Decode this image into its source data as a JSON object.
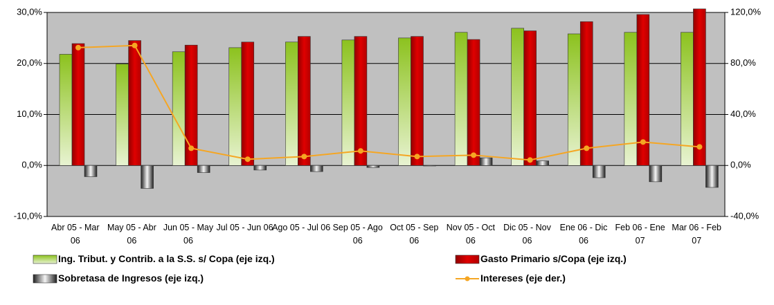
{
  "chart_data": {
    "type": "bar",
    "categories": [
      "Abr 05 - Mar 06",
      "May 05 - Abr 06",
      "Jun 05 - May 06",
      "Jul 05 - Jun 06",
      "Ago 05 - Jul 06",
      "Sep 05 - Ago 06",
      "Oct 05 - Sep 06",
      "Nov 05 - Oct 06",
      "Dic 05 - Nov 06",
      "Ene 06 - Dic 06",
      "Feb 06 - Ene 07",
      "Mar 06 - Feb 07"
    ],
    "series": [
      {
        "name": "Ing. Tribut. y Contrib. a la S.S. s/ Copa (eje izq.)",
        "color": "#8cc21e",
        "values": [
          21.8,
          19.9,
          22.3,
          23.1,
          24.2,
          24.6,
          25.0,
          26.1,
          26.9,
          25.8,
          26.1,
          26.1
        ]
      },
      {
        "name": "Gasto Primario s/Copa (eje izq.)",
        "color": "#e00000",
        "values": [
          23.9,
          24.5,
          23.6,
          24.2,
          25.3,
          25.3,
          25.3,
          24.7,
          26.4,
          28.2,
          29.6,
          30.7
        ]
      },
      {
        "name": "Sobretasa de Ingresos (eje izq.)",
        "color": "#202020",
        "values": [
          -2.2,
          -4.5,
          -1.4,
          -0.9,
          -1.2,
          -0.4,
          -0.1,
          1.5,
          0.9,
          -2.4,
          -3.2,
          -4.3
        ]
      },
      {
        "name": "Intereses (eje der.)",
        "color": "#f5a623",
        "type": "line",
        "axis": "y2",
        "values": [
          92.4,
          94.1,
          13.5,
          4.9,
          7.0,
          11.4,
          7.0,
          8.1,
          4.3,
          13.5,
          18.4,
          14.6
        ]
      }
    ],
    "ylim": [
      -10,
      30
    ],
    "yticks": [
      {
        "value": -10,
        "label": "-10,0%"
      },
      {
        "value": 0,
        "label": "0,0%"
      },
      {
        "value": 10,
        "label": "10,0%"
      },
      {
        "value": 20,
        "label": "20,0%"
      },
      {
        "value": 30,
        "label": "30,0%"
      }
    ],
    "y2lim": [
      -40,
      120
    ],
    "y2ticks": [
      {
        "value": -40,
        "label": "-40,0%"
      },
      {
        "value": 0,
        "label": "0,0%"
      },
      {
        "value": 40,
        "label": "40,0%"
      },
      {
        "value": 80,
        "label": "80,0%"
      },
      {
        "value": 120,
        "label": "120,0%"
      }
    ],
    "grid": true
  }
}
